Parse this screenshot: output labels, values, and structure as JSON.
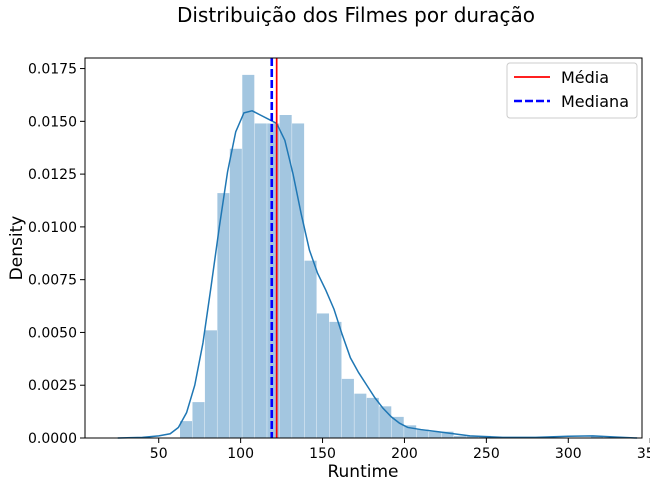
{
  "chart_data": {
    "type": "bar",
    "title": "Distribuição dos Filmes por duração",
    "xlabel": "Runtime",
    "ylabel": "Density",
    "xlim": [
      5,
      345
    ],
    "ylim": [
      0,
      0.018
    ],
    "xticks": [
      50,
      100,
      150,
      200,
      250,
      300,
      350
    ],
    "yticks": [
      "0.0000",
      "0.0025",
      "0.0050",
      "0.0075",
      "0.0100",
      "0.0125",
      "0.0150",
      "0.0175"
    ],
    "grid": false,
    "legend_position": "top-right",
    "histogram": {
      "bin_width": 7.6,
      "color": "#a3c6e0",
      "bins": [
        {
          "x0": 63,
          "value": 0.0008
        },
        {
          "x0": 70.6,
          "value": 0.0017
        },
        {
          "x0": 78.2,
          "value": 0.0051
        },
        {
          "x0": 85.8,
          "value": 0.0116
        },
        {
          "x0": 93.4,
          "value": 0.0137
        },
        {
          "x0": 101,
          "value": 0.0172
        },
        {
          "x0": 108.6,
          "value": 0.0149
        },
        {
          "x0": 116.2,
          "value": 0.0149
        },
        {
          "x0": 123.8,
          "value": 0.0153
        },
        {
          "x0": 131.4,
          "value": 0.0149
        },
        {
          "x0": 139,
          "value": 0.0084
        },
        {
          "x0": 146.6,
          "value": 0.0059
        },
        {
          "x0": 154.2,
          "value": 0.0055
        },
        {
          "x0": 161.8,
          "value": 0.0028
        },
        {
          "x0": 169.4,
          "value": 0.0021
        },
        {
          "x0": 177,
          "value": 0.0019
        },
        {
          "x0": 184.6,
          "value": 0.0015
        },
        {
          "x0": 192.2,
          "value": 0.001
        },
        {
          "x0": 199.8,
          "value": 0.0006
        },
        {
          "x0": 207.4,
          "value": 0.0004
        },
        {
          "x0": 215,
          "value": 0.0003
        },
        {
          "x0": 222.6,
          "value": 0.0003
        },
        {
          "x0": 230.2,
          "value": 0.0001
        },
        {
          "x0": 237.8,
          "value": 0.0001
        },
        {
          "x0": 245.4,
          "value": 0.0001
        },
        {
          "x0": 313.8,
          "value": 0.0001
        }
      ]
    },
    "kde": {
      "color": "#1f77b4",
      "x": [
        25,
        40,
        50,
        57,
        62,
        67,
        72,
        77,
        82,
        87,
        92,
        97,
        102,
        107,
        112,
        117,
        122,
        127,
        132,
        137,
        142,
        147,
        152,
        157,
        162,
        167,
        172,
        177,
        182,
        187,
        192,
        197,
        202,
        210,
        220,
        230,
        240,
        260,
        280,
        300,
        315,
        330,
        342
      ],
      "y": [
        0.0,
        3e-05,
        0.0001,
        0.0002,
        0.0005,
        0.0012,
        0.0025,
        0.0045,
        0.0072,
        0.01,
        0.0126,
        0.0145,
        0.0154,
        0.0155,
        0.0153,
        0.0151,
        0.0149,
        0.0141,
        0.0125,
        0.0106,
        0.0089,
        0.0078,
        0.007,
        0.0061,
        0.0049,
        0.0038,
        0.0031,
        0.0025,
        0.0019,
        0.0014,
        0.001,
        0.0007,
        0.0005,
        0.0004,
        0.0003,
        0.0002,
        0.0001,
        3e-05,
        3e-05,
        8e-05,
        0.0001,
        4e-05,
        0.0
      ]
    },
    "lines": [
      {
        "name": "Média",
        "x": 122,
        "color": "#ff0000",
        "style": "solid"
      },
      {
        "name": "Mediana",
        "x": 119,
        "color": "#0000ff",
        "style": "dashed"
      }
    ]
  }
}
